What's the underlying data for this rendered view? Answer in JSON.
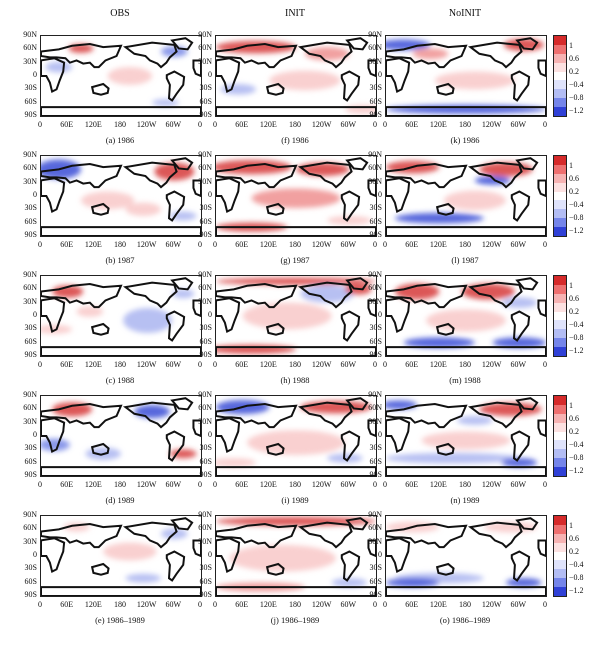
{
  "columns": [
    "OBS",
    "INIT",
    "NoINIT"
  ],
  "lat_ticks": [
    "90N",
    "60N",
    "30N",
    "0",
    "30S",
    "60S",
    "90S"
  ],
  "lon_ticks": [
    "0",
    "60E",
    "120E",
    "180",
    "120W",
    "60W",
    "0"
  ],
  "captions": [
    [
      "(a) 1986",
      "(f) 1986",
      "(k) 1986"
    ],
    [
      "(b) 1987",
      "(g) 1987",
      "(l) 1987"
    ],
    [
      "(c) 1988",
      "(h) 1988",
      "(m) 1988"
    ],
    [
      "(d) 1989",
      "(i) 1989",
      "(n) 1989"
    ],
    [
      "(e) 1986–1989",
      "(j) 1986–1989",
      "(o) 1986–1989"
    ]
  ],
  "colorbar": {
    "labels": [
      "1",
      "0.6",
      "0.2",
      "−0.4",
      "−0.8",
      "−1.2"
    ],
    "colors": [
      "#d62a2a",
      "#ee7070",
      "#f6b3b3",
      "#fce1e1",
      "#ffffff",
      "#dfe3fb",
      "#b3bdf4",
      "#7585ea",
      "#2f40d6"
    ]
  }
}
